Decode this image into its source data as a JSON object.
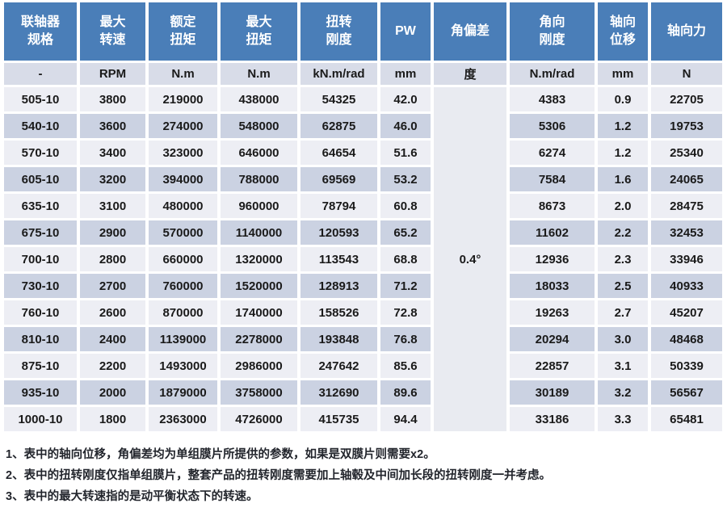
{
  "colors": {
    "header_bg": "#4A7EB8",
    "header_text": "#FFFFFF",
    "units_row_bg": "#D8DCE8",
    "row_light_bg": "#EDEEF4",
    "row_dark_bg": "#CBD2E2",
    "merged_cell_bg": "#E9EBF1",
    "cell_text": "#1A1A1A"
  },
  "table": {
    "columns": [
      {
        "key": "spec",
        "header": "联轴器\n规格",
        "unit": "-"
      },
      {
        "key": "max_speed",
        "header": "最大\n转速",
        "unit": "RPM"
      },
      {
        "key": "rated_torque",
        "header": "额定\n扭矩",
        "unit": "N.m"
      },
      {
        "key": "max_torque",
        "header": "最大\n扭矩",
        "unit": "N.m"
      },
      {
        "key": "torsional_stiffness",
        "header": "扭转\n刚度",
        "unit": "kN.m/rad"
      },
      {
        "key": "pw",
        "header": "PW",
        "unit": "mm"
      },
      {
        "key": "angular_deviation",
        "header": "角偏差",
        "unit": "度"
      },
      {
        "key": "angular_stiffness",
        "header": "角向\n刚度",
        "unit": "N.m/rad"
      },
      {
        "key": "axial_displacement",
        "header": "轴向\n位移",
        "unit": "mm"
      },
      {
        "key": "axial_force",
        "header": "轴向力",
        "unit": "N"
      }
    ],
    "angular_deviation_value": "0.4°",
    "rows": [
      [
        "505-10",
        "3800",
        "219000",
        "438000",
        "54325",
        "42.0",
        "4383",
        "0.9",
        "22705"
      ],
      [
        "540-10",
        "3600",
        "274000",
        "548000",
        "62875",
        "46.0",
        "5306",
        "1.2",
        "19753"
      ],
      [
        "570-10",
        "3400",
        "323000",
        "646000",
        "64654",
        "51.6",
        "6274",
        "1.2",
        "25340"
      ],
      [
        "605-10",
        "3200",
        "394000",
        "788000",
        "69569",
        "53.2",
        "7584",
        "1.6",
        "24065"
      ],
      [
        "635-10",
        "3100",
        "480000",
        "960000",
        "78794",
        "60.8",
        "8673",
        "2.0",
        "28475"
      ],
      [
        "675-10",
        "2900",
        "570000",
        "1140000",
        "120593",
        "65.2",
        "11602",
        "2.2",
        "32453"
      ],
      [
        "700-10",
        "2800",
        "660000",
        "1320000",
        "113543",
        "68.8",
        "12936",
        "2.3",
        "33946"
      ],
      [
        "730-10",
        "2700",
        "760000",
        "1520000",
        "128913",
        "71.2",
        "18033",
        "2.5",
        "40933"
      ],
      [
        "760-10",
        "2600",
        "870000",
        "1740000",
        "158526",
        "72.8",
        "19263",
        "2.7",
        "45207"
      ],
      [
        "810-10",
        "2400",
        "1139000",
        "2278000",
        "193848",
        "76.8",
        "20294",
        "3.0",
        "48468"
      ],
      [
        "875-10",
        "2200",
        "1493000",
        "2986000",
        "247642",
        "85.6",
        "22857",
        "3.1",
        "50339"
      ],
      [
        "935-10",
        "2000",
        "1879000",
        "3758000",
        "312690",
        "89.6",
        "30189",
        "3.2",
        "56567"
      ],
      [
        "1000-10",
        "1800",
        "2363000",
        "4726000",
        "415735",
        "94.4",
        "33186",
        "3.3",
        "65481"
      ]
    ]
  },
  "footnotes": [
    "1、表中的轴向位移，角偏差均为单组膜片所提供的参数，如果是双膜片则需要x2。",
    "2、表中的扭转刚度仅指单组膜片，整套产品的扭转刚度需要加上轴毂及中间加长段的扭转刚度一并考虑。",
    "3、表中的最大转速指的是动平衡状态下的转速。"
  ]
}
